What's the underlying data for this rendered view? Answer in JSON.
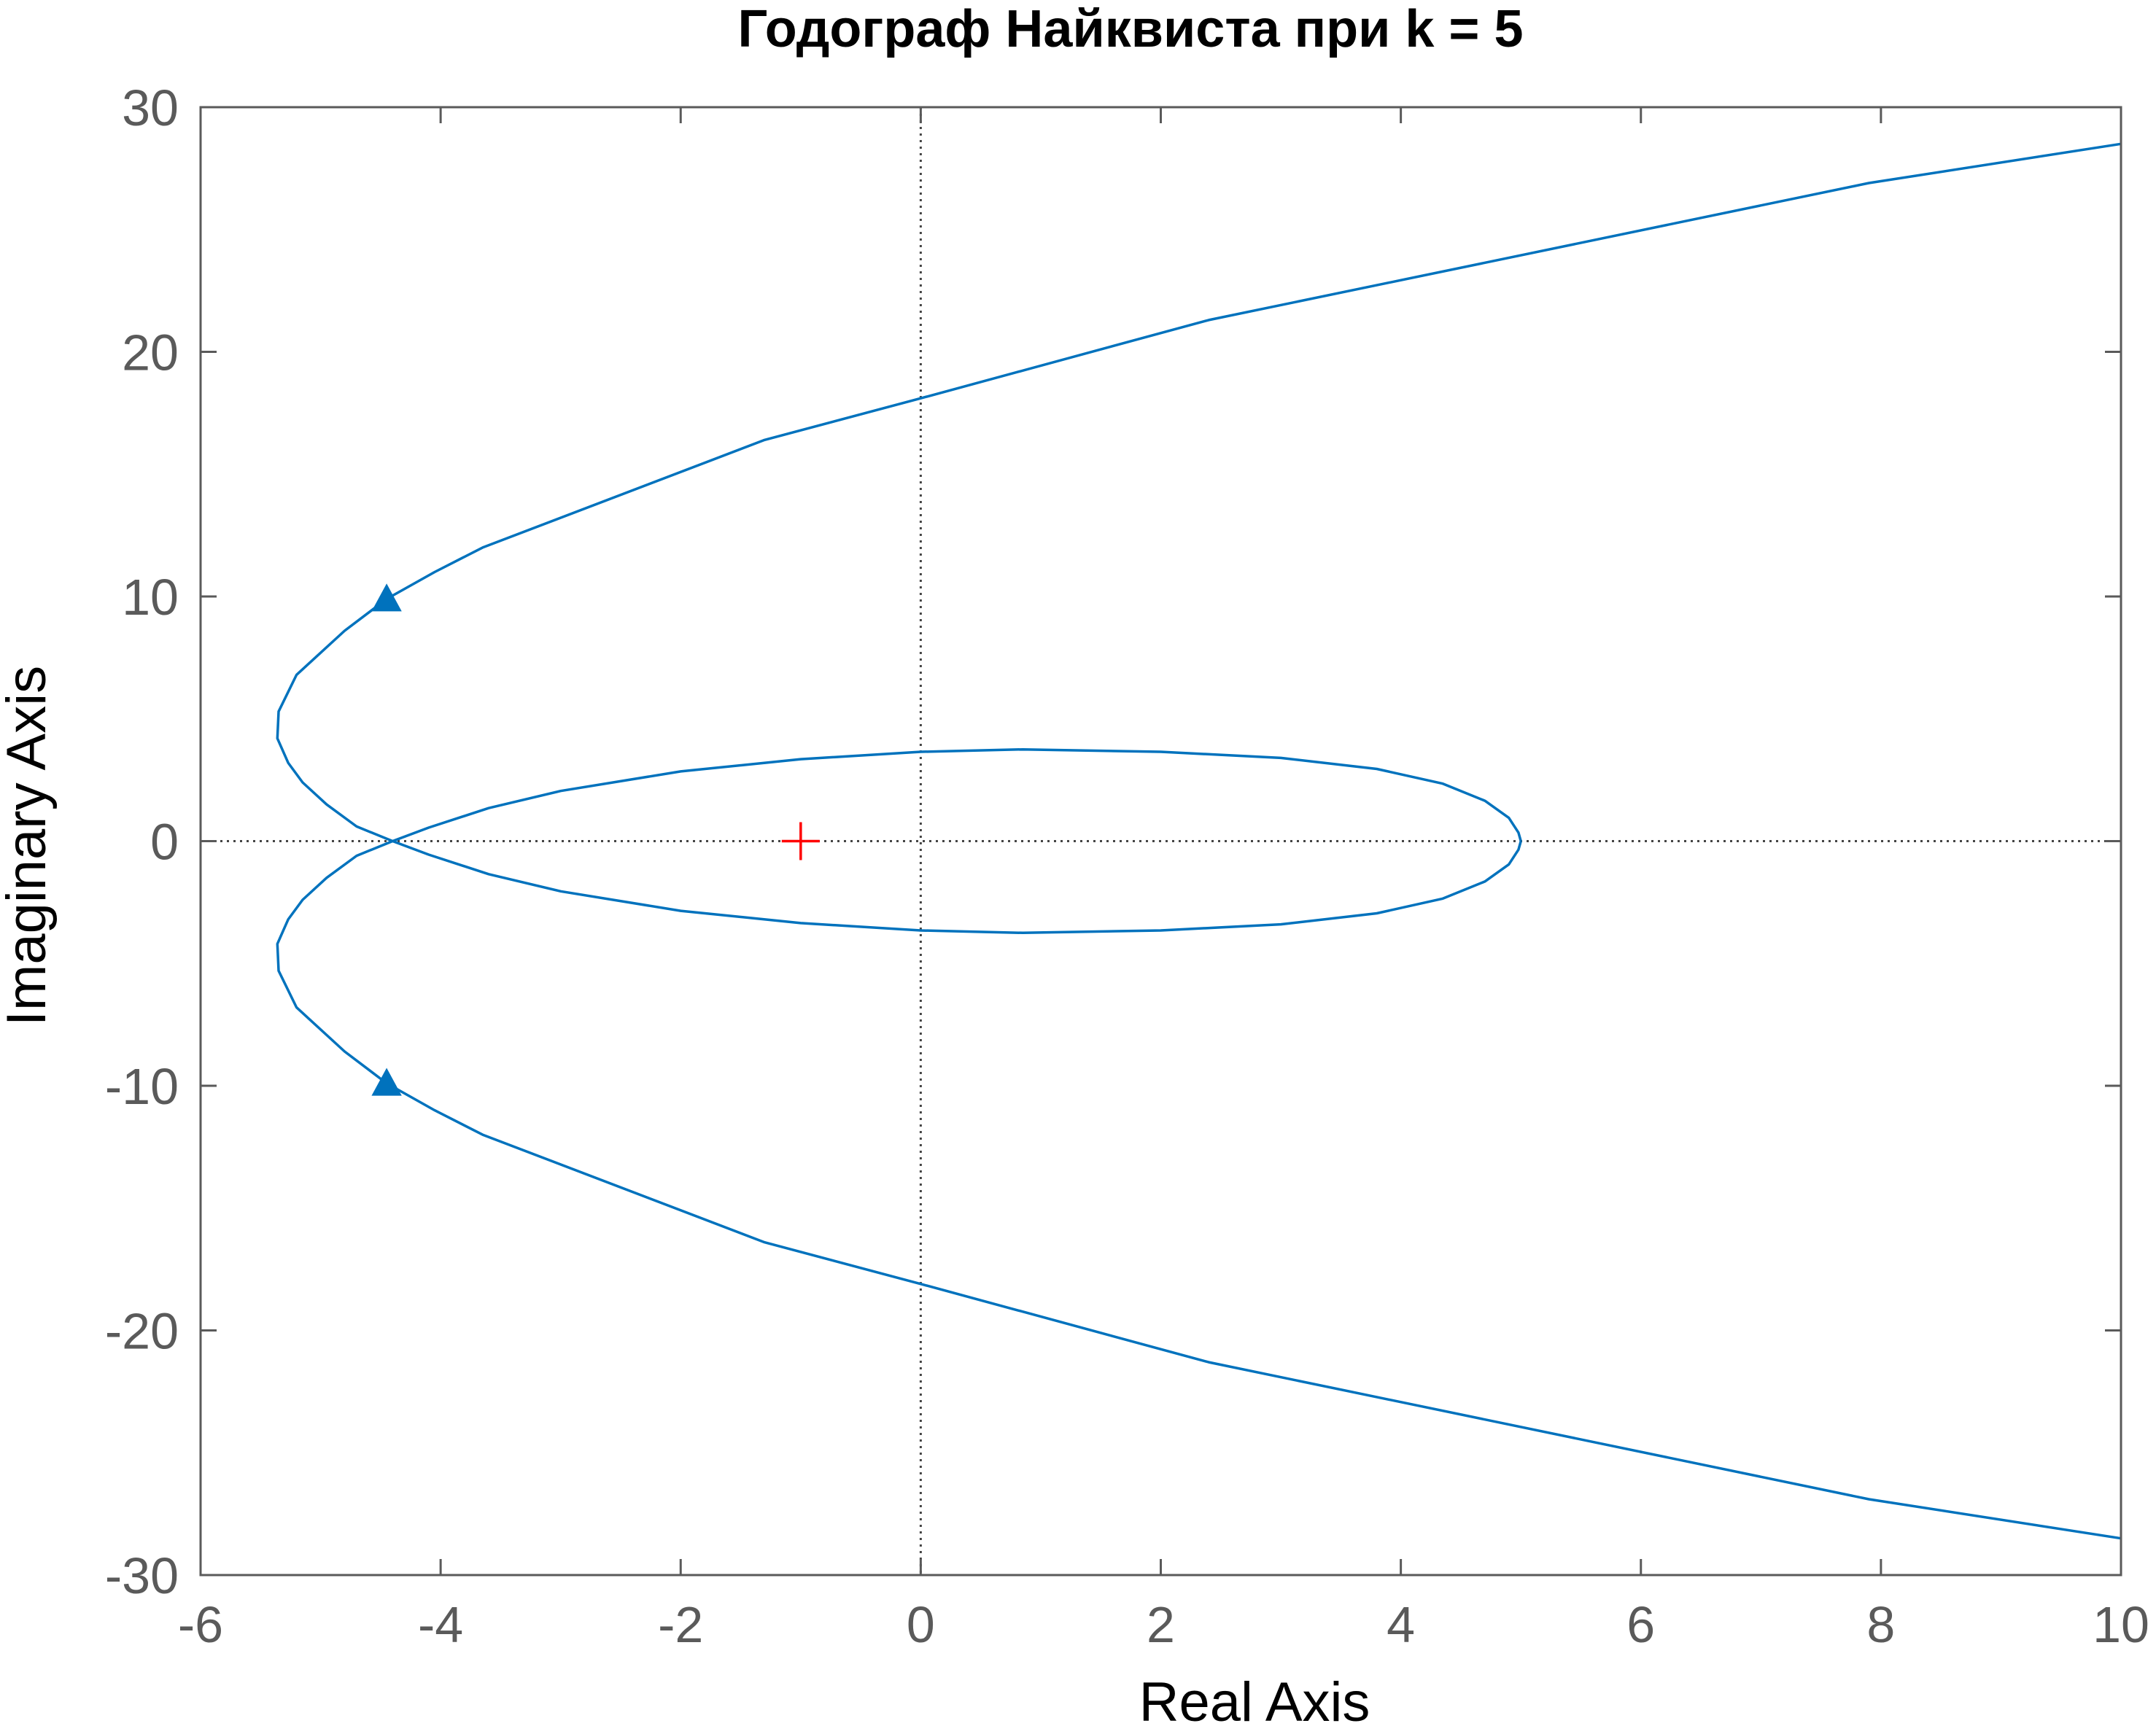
{
  "chart_data": {
    "type": "line",
    "title": "Годограф Найквиста при k = 5",
    "xlabel": "Real Axis",
    "ylabel": "Imaginary Axis",
    "xlim": [
      -6,
      10
    ],
    "ylim": [
      -30,
      30
    ],
    "xticks": [
      -6,
      -4,
      -2,
      0,
      2,
      4,
      6,
      8,
      10
    ],
    "yticks": [
      -30,
      -20,
      -10,
      0,
      10,
      20,
      30
    ],
    "xtick_labels": [
      "-6",
      "-4",
      "-2",
      "0",
      "2",
      "4",
      "6",
      "8",
      "10"
    ],
    "ytick_labels": [
      "-30",
      "-20",
      "-10",
      "0",
      "10",
      "20",
      "30"
    ],
    "grid": false,
    "zero_lines": true,
    "series": [
      {
        "color": "#0072bd",
        "x": [
          10.0,
          7.9,
          2.4,
          0.0,
          -1.3,
          -3.65,
          -4.05,
          -4.45,
          -4.8,
          -5.2,
          -5.35,
          -5.36,
          -5.27,
          -5.15,
          -4.95,
          -4.7,
          -4.4,
          -4.1,
          -3.6,
          -3.0,
          -2.0,
          -1.0,
          0.0,
          0.85,
          2.0,
          3.0,
          3.8,
          4.35,
          4.7,
          4.9,
          4.98,
          5.0
        ],
        "y": [
          28.5,
          26.9,
          21.3,
          18.1,
          16.4,
          12.0,
          11.0,
          9.9,
          8.6,
          6.8,
          5.3,
          4.2,
          3.2,
          2.4,
          1.5,
          0.6,
          0.0,
          -0.55,
          -1.35,
          -2.05,
          -2.85,
          -3.35,
          -3.65,
          -3.75,
          -3.65,
          -3.4,
          -2.95,
          -2.35,
          -1.65,
          -0.95,
          -0.35,
          0.0
        ],
        "mirror": true
      }
    ],
    "markers": [
      {
        "kind": "direction-arrow",
        "x": -4.45,
        "y": 9.9,
        "color": "#0072bd"
      },
      {
        "kind": "direction-arrow",
        "x": -4.45,
        "y": -9.9,
        "color": "#0072bd"
      },
      {
        "kind": "critical-point",
        "x": -1,
        "y": 0,
        "color": "#ff0000"
      }
    ]
  }
}
